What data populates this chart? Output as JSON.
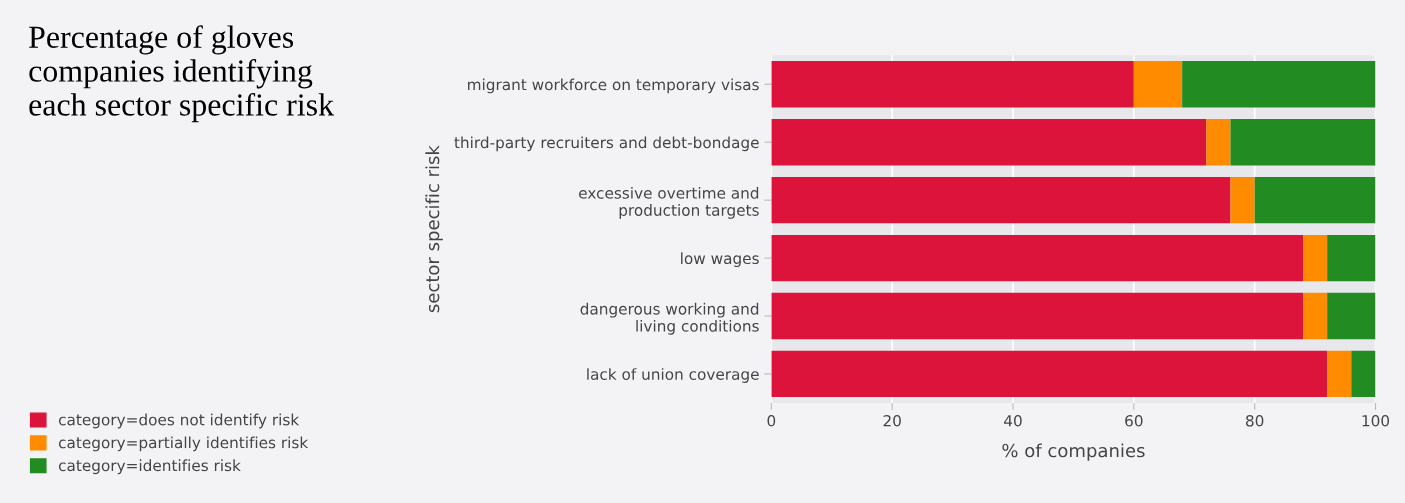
{
  "chart_data": {
    "type": "bar",
    "orientation": "horizontal",
    "stacked": true,
    "title": "Percentage of gloves\ncompanies identifying\neach sector specific risk",
    "xlabel": "% of companies",
    "ylabel": "sector specific risk",
    "categories": [
      "migrant workforce on temporary visas",
      "third-party recruiters and debt-bondage",
      "excessive overtime and\nproduction targets",
      "low wages",
      "dangerous working and\nliving conditions",
      "lack of union coverage"
    ],
    "series": [
      {
        "name": "category=does not identify risk",
        "color": "#dc143c",
        "values": [
          60,
          72,
          76,
          88,
          88,
          92
        ]
      },
      {
        "name": "category=partially identifies risk",
        "color": "#ff8c00",
        "values": [
          8,
          4,
          4,
          4,
          4,
          4
        ]
      },
      {
        "name": "category=identifies risk",
        "color": "#228b22",
        "values": [
          32,
          24,
          20,
          8,
          8,
          4
        ]
      }
    ],
    "xlim": [
      0,
      100
    ],
    "xticks": [
      0,
      20,
      40,
      60,
      80,
      100
    ],
    "grid": "x",
    "legend": "bottom left"
  }
}
